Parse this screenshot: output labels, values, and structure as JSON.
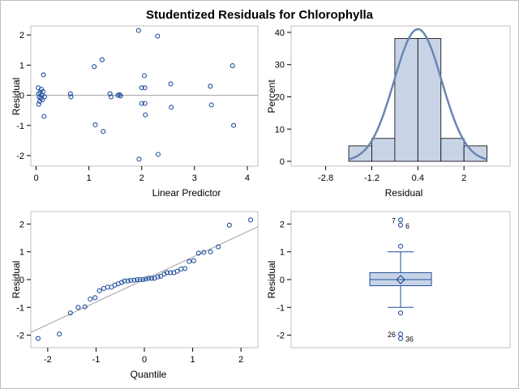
{
  "title": "Studentized Residuals for Chlorophylla",
  "colors": {
    "marker": "#1f4e9c",
    "bar_fill": "#c8d4e6",
    "curve": "#6a86b2",
    "ref_line": "#a0a0a0",
    "box_fill": "#c8d4e6"
  },
  "chart_data": [
    {
      "type": "scatter",
      "title": "",
      "xlabel": "Linear Predictor",
      "ylabel": "Residual",
      "xlim": [
        -0.1,
        4.2
      ],
      "ylim": [
        -2.35,
        2.3
      ],
      "xticks": [
        0,
        1,
        2,
        3,
        4
      ],
      "yticks": [
        -2,
        -1,
        0,
        1,
        2
      ],
      "reference_line_y": 0,
      "points": [
        [
          0.04,
          0.25
        ],
        [
          0.05,
          0.05
        ],
        [
          0.06,
          -0.05
        ],
        [
          0.07,
          -0.2
        ],
        [
          0.08,
          0.1
        ],
        [
          0.09,
          -0.1
        ],
        [
          0.05,
          -0.3
        ],
        [
          0.1,
          0.2
        ],
        [
          0.11,
          0.0
        ],
        [
          0.12,
          -0.15
        ],
        [
          0.13,
          0.12
        ],
        [
          0.14,
          0.68
        ],
        [
          0.15,
          -0.7
        ],
        [
          0.16,
          -0.05
        ],
        [
          0.65,
          0.05
        ],
        [
          0.66,
          -0.05
        ],
        [
          1.1,
          0.95
        ],
        [
          1.12,
          -0.98
        ],
        [
          1.25,
          1.18
        ],
        [
          1.27,
          -1.2
        ],
        [
          1.4,
          0.05
        ],
        [
          1.42,
          -0.05
        ],
        [
          1.55,
          0.0
        ],
        [
          1.58,
          0.02
        ],
        [
          1.6,
          -0.02
        ],
        [
          1.94,
          2.15
        ],
        [
          1.95,
          -2.12
        ],
        [
          2.0,
          0.25
        ],
        [
          2.0,
          -0.27
        ],
        [
          2.05,
          0.65
        ],
        [
          2.06,
          0.25
        ],
        [
          2.06,
          -0.27
        ],
        [
          2.07,
          -0.65
        ],
        [
          2.3,
          1.96
        ],
        [
          2.31,
          -1.96
        ],
        [
          2.55,
          0.38
        ],
        [
          2.56,
          -0.4
        ],
        [
          3.3,
          0.3
        ],
        [
          3.32,
          -0.32
        ],
        [
          3.72,
          0.98
        ],
        [
          3.74,
          -1.0
        ]
      ]
    },
    {
      "type": "bar",
      "title": "",
      "xlabel": "Residual",
      "ylabel": "Percent",
      "xlim": [
        -4.0,
        3.6
      ],
      "ylim": [
        -1.5,
        42
      ],
      "xticks": [
        -2.8,
        -1.2,
        0.4,
        2
      ],
      "yticks": [
        0,
        10,
        20,
        30,
        40
      ],
      "bin_edges": [
        -2.0,
        -1.2,
        -0.4,
        0.4,
        1.2,
        2.0,
        2.8
      ],
      "values": [
        4.8,
        7.1,
        38.1,
        38.1,
        7.1,
        4.8
      ],
      "normal_curve": {
        "mean": 0.4,
        "sd": 0.83,
        "scale": 82
      }
    },
    {
      "type": "scatter",
      "title": "",
      "xlabel": "Quantile",
      "ylabel": "Residual",
      "xlim": [
        -2.35,
        2.35
      ],
      "ylim": [
        -2.45,
        2.45
      ],
      "xticks": [
        -2,
        -1,
        0,
        1,
        2
      ],
      "yticks": [
        -2,
        -1,
        0,
        1,
        2
      ],
      "reference_line": {
        "x": [
          -2.35,
          2.35
        ],
        "y": [
          -1.9,
          1.9
        ]
      },
      "points": [
        [
          -2.2,
          -2.12
        ],
        [
          -1.76,
          -1.96
        ],
        [
          -1.53,
          -1.2
        ],
        [
          -1.37,
          -1.0
        ],
        [
          -1.23,
          -0.98
        ],
        [
          -1.12,
          -0.7
        ],
        [
          -1.02,
          -0.65
        ],
        [
          -0.93,
          -0.4
        ],
        [
          -0.84,
          -0.32
        ],
        [
          -0.76,
          -0.27
        ],
        [
          -0.68,
          -0.27
        ],
        [
          -0.61,
          -0.2
        ],
        [
          -0.54,
          -0.15
        ],
        [
          -0.47,
          -0.1
        ],
        [
          -0.41,
          -0.05
        ],
        [
          -0.34,
          -0.05
        ],
        [
          -0.28,
          -0.03
        ],
        [
          -0.21,
          -0.02
        ],
        [
          -0.15,
          0.0
        ],
        [
          -0.09,
          0.0
        ],
        [
          -0.03,
          0.0
        ],
        [
          0.03,
          0.02
        ],
        [
          0.09,
          0.05
        ],
        [
          0.15,
          0.05
        ],
        [
          0.21,
          0.05
        ],
        [
          0.28,
          0.1
        ],
        [
          0.34,
          0.12
        ],
        [
          0.41,
          0.2
        ],
        [
          0.47,
          0.25
        ],
        [
          0.54,
          0.25
        ],
        [
          0.61,
          0.25
        ],
        [
          0.68,
          0.3
        ],
        [
          0.76,
          0.38
        ],
        [
          0.84,
          0.4
        ],
        [
          0.93,
          0.65
        ],
        [
          1.02,
          0.68
        ],
        [
          1.12,
          0.95
        ],
        [
          1.23,
          0.98
        ],
        [
          1.37,
          1.0
        ],
        [
          1.53,
          1.18
        ],
        [
          1.76,
          1.96
        ],
        [
          2.2,
          2.15
        ]
      ]
    },
    {
      "type": "box",
      "title": "",
      "xlabel": "",
      "ylabel": "Residual",
      "ylim": [
        -2.45,
        2.45
      ],
      "yticks": [
        -2,
        -1,
        0,
        1,
        2
      ],
      "q1": -0.22,
      "median": 0.0,
      "q3": 0.25,
      "mean": 0.0,
      "whisker_low": -1.0,
      "whisker_high": 1.0,
      "outliers": [
        {
          "value": 2.15,
          "label": "7"
        },
        {
          "value": 1.96,
          "label": "6"
        },
        {
          "value": 1.2,
          "label": ""
        },
        {
          "value": -1.2,
          "label": ""
        },
        {
          "value": -1.96,
          "label": "26"
        },
        {
          "value": -2.12,
          "label": "36"
        }
      ]
    }
  ]
}
